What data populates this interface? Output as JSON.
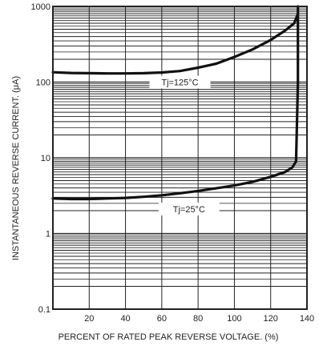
{
  "chart_data": {
    "type": "line",
    "xlabel": "PERCENT OF RATED PEAK REVERSE VOLTAGE. (%)",
    "ylabel": "INSTANTANEOUS REVERSE CURRENT. (μA)",
    "xlim": [
      0,
      140
    ],
    "ylim": [
      0.1,
      1000
    ],
    "yscale": "log",
    "grid": true,
    "x_ticks": [
      20,
      40,
      60,
      80,
      100,
      120,
      140
    ],
    "y_ticks": [
      {
        "value": 0.1,
        "label": "0.1"
      },
      {
        "value": 1,
        "label": "1"
      },
      {
        "value": 10,
        "label": "10"
      },
      {
        "value": 100,
        "label": "100"
      },
      {
        "value": 1000,
        "label": "1000"
      }
    ],
    "series": [
      {
        "name": "Tj=125°C",
        "label_at": {
          "x": 70,
          "y": 100
        },
        "x": [
          0,
          10,
          20,
          30,
          40,
          50,
          60,
          70,
          80,
          90,
          100,
          110,
          120,
          128,
          133,
          135
        ],
        "y": [
          135,
          132,
          131,
          130,
          130,
          131,
          134,
          140,
          155,
          175,
          215,
          270,
          360,
          480,
          600,
          800
        ]
      },
      {
        "name": "Tj=25°C",
        "label_at": {
          "x": 75,
          "y": 2.1
        },
        "x": [
          0,
          10,
          20,
          30,
          40,
          50,
          60,
          70,
          80,
          90,
          100,
          110,
          120,
          128,
          132,
          134,
          135,
          135
        ],
        "y": [
          2.9,
          2.85,
          2.85,
          2.9,
          2.95,
          3.05,
          3.2,
          3.4,
          3.65,
          3.95,
          4.3,
          4.8,
          5.6,
          6.5,
          7.5,
          9.0,
          100,
          1000
        ]
      }
    ]
  }
}
